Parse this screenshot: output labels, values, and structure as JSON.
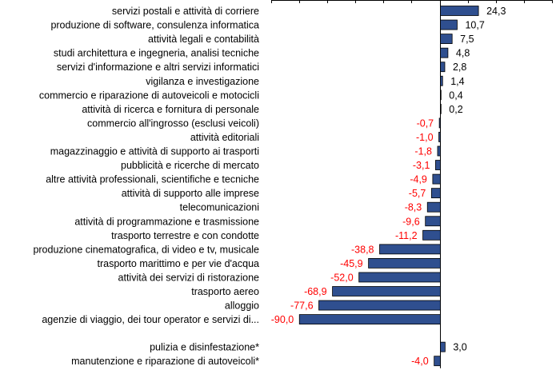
{
  "chart_data": {
    "type": "bar",
    "orientation": "horizontal",
    "title": "",
    "xlabel": "",
    "ylabel": "",
    "xlim": [
      -100,
      30
    ],
    "grid": false,
    "colors": {
      "bar_fill": "#2f4f8f",
      "bar_stroke": "#000000",
      "positive_label": "#000000",
      "negative_label": "#ff0000"
    },
    "categories": [
      "servizi postali e attività di corriere",
      "produzione di software, consulenza informatica",
      "attività legali e contabilità",
      "studi architettura e ingegneria, analisi tecniche",
      "servizi d'informazione e altri servizi informatici",
      "vigilanza e investigazione",
      "commercio e riparazione di autoveicoli e motocicli",
      "attività di ricerca e fornitura di personale",
      "commercio all'ingrosso (esclusi veicoli)",
      "attività editoriali",
      "magazzinaggio e attività di supporto ai trasporti",
      "pubblicità e ricerche di mercato",
      "altre attività professionali, scientifiche e tecniche",
      "attività di supporto alle imprese",
      "telecomunicazioni",
      "attività di programmazione e trasmissione",
      "trasporto terrestre e con condotte",
      "produzione cinematografica, di video e tv, musicale",
      "trasporto marittimo e per vie d'acqua",
      "attività dei servizi di ristorazione",
      "trasporto aereo",
      "alloggio",
      "agenzie di viaggio, dei tour operator e servizi di...",
      "pulizia e disinfestazione*",
      "manutenzione e riparazione di autoveicoli*"
    ],
    "values": [
      24.3,
      10.7,
      7.5,
      4.8,
      2.8,
      1.4,
      0.4,
      0.2,
      -0.7,
      -1.0,
      -1.8,
      -3.1,
      -4.9,
      -5.7,
      -8.3,
      -9.6,
      -11.2,
      -38.8,
      -45.9,
      -52.0,
      -68.9,
      -77.6,
      -90.0,
      3.0,
      -4.0
    ],
    "value_labels": [
      "24,3",
      "10,7",
      "7,5",
      "4,8",
      "2,8",
      "1,4",
      "0,4",
      "0,2",
      "-0,7",
      "-1,0",
      "-1,8",
      "-3,1",
      "-4,9",
      "-5,7",
      "-8,3",
      "-9,6",
      "-11,2",
      "-38,8",
      "-45,9",
      "-52,0",
      "-68,9",
      "-77,6",
      "-90,0",
      "3,0",
      "-4,0"
    ]
  }
}
